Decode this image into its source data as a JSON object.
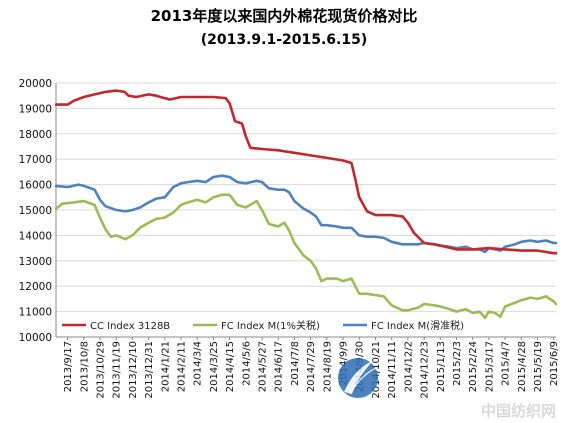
{
  "chart_data": {
    "type": "line",
    "title": "2013年度以来国内外棉花现货价格对比",
    "subtitle": "(2013.9.1-2015.6.15)",
    "xlabel": "",
    "ylabel": "",
    "ylim": [
      10000,
      20000
    ],
    "yticks": [
      10000,
      11000,
      12000,
      13000,
      14000,
      15000,
      16000,
      17000,
      18000,
      19000,
      20000
    ],
    "grid": "horizontal",
    "legend_position": "bottom-inside",
    "xlim": [
      "2013-09-02",
      "2015-06-12"
    ],
    "x_tick_labels": [
      "2013/9/17",
      "2013/10/8",
      "2013/10/29",
      "2013/11/19",
      "2013/12/10",
      "2013/12/31",
      "2014/1/21",
      "2014/2/11",
      "2014/3/4",
      "2014/3/25",
      "2014/4/15",
      "2014/5/6",
      "2014/5/27",
      "2014/6/17",
      "2014/7/8",
      "2014/7/29",
      "2014/8/19",
      "2014/9/9",
      "2014/9/30",
      "2014/10/21",
      "2014/11/11",
      "2014/12/2",
      "2014/12/23",
      "2015/1/13",
      "2015/2/3",
      "2015/2/24",
      "2015/3/17",
      "2015/4/7",
      "2015/4/28",
      "2015/5/19",
      "2015/6/9"
    ],
    "series": [
      {
        "name": "CC Index 3128B",
        "color": "#C0282D",
        "points": [
          [
            "2013-09-02",
            19150
          ],
          [
            "2013-09-17",
            19150
          ],
          [
            "2013-09-25",
            19300
          ],
          [
            "2013-10-08",
            19450
          ],
          [
            "2013-10-22",
            19550
          ],
          [
            "2013-11-05",
            19650
          ],
          [
            "2013-11-19",
            19700
          ],
          [
            "2013-11-30",
            19650
          ],
          [
            "2013-12-05",
            19500
          ],
          [
            "2013-12-15",
            19450
          ],
          [
            "2013-12-31",
            19550
          ],
          [
            "2014-01-10",
            19500
          ],
          [
            "2014-01-21",
            19400
          ],
          [
            "2014-01-28",
            19350
          ],
          [
            "2014-02-11",
            19450
          ],
          [
            "2014-03-04",
            19450
          ],
          [
            "2014-03-25",
            19450
          ],
          [
            "2014-04-10",
            19400
          ],
          [
            "2014-04-15",
            19200
          ],
          [
            "2014-04-22",
            18500
          ],
          [
            "2014-05-01",
            18400
          ],
          [
            "2014-05-06",
            17900
          ],
          [
            "2014-05-12",
            17450
          ],
          [
            "2014-05-27",
            17400
          ],
          [
            "2014-06-17",
            17350
          ],
          [
            "2014-07-08",
            17250
          ],
          [
            "2014-07-29",
            17150
          ],
          [
            "2014-08-19",
            17050
          ],
          [
            "2014-09-09",
            16950
          ],
          [
            "2014-09-20",
            16850
          ],
          [
            "2014-09-25",
            16200
          ],
          [
            "2014-09-30",
            15500
          ],
          [
            "2014-10-10",
            14950
          ],
          [
            "2014-10-21",
            14800
          ],
          [
            "2014-11-11",
            14800
          ],
          [
            "2014-11-25",
            14750
          ],
          [
            "2014-12-02",
            14500
          ],
          [
            "2014-12-10",
            14100
          ],
          [
            "2014-12-23",
            13700
          ],
          [
            "2015-01-05",
            13650
          ],
          [
            "2015-01-13",
            13600
          ],
          [
            "2015-01-20",
            13550
          ],
          [
            "2015-02-03",
            13450
          ],
          [
            "2015-02-24",
            13450
          ],
          [
            "2015-03-17",
            13500
          ],
          [
            "2015-04-07",
            13450
          ],
          [
            "2015-04-28",
            13400
          ],
          [
            "2015-05-19",
            13400
          ],
          [
            "2015-06-09",
            13300
          ],
          [
            "2015-06-12",
            13300
          ]
        ]
      },
      {
        "name": "FC Index M(1%关税)",
        "color": "#9BBB59",
        "points": [
          [
            "2013-09-02",
            15050
          ],
          [
            "2013-09-10",
            15250
          ],
          [
            "2013-09-25",
            15300
          ],
          [
            "2013-10-08",
            15350
          ],
          [
            "2013-10-22",
            15200
          ],
          [
            "2013-10-29",
            14700
          ],
          [
            "2013-11-05",
            14250
          ],
          [
            "2013-11-12",
            13950
          ],
          [
            "2013-11-19",
            14000
          ],
          [
            "2013-12-01",
            13850
          ],
          [
            "2013-12-10",
            14000
          ],
          [
            "2013-12-20",
            14300
          ],
          [
            "2013-12-31",
            14500
          ],
          [
            "2014-01-10",
            14650
          ],
          [
            "2014-01-21",
            14700
          ],
          [
            "2014-02-01",
            14900
          ],
          [
            "2014-02-11",
            15200
          ],
          [
            "2014-02-20",
            15300
          ],
          [
            "2014-03-04",
            15400
          ],
          [
            "2014-03-15",
            15300
          ],
          [
            "2014-03-25",
            15500
          ],
          [
            "2014-04-05",
            15600
          ],
          [
            "2014-04-15",
            15600
          ],
          [
            "2014-04-25",
            15200
          ],
          [
            "2014-05-06",
            15100
          ],
          [
            "2014-05-20",
            15350
          ],
          [
            "2014-05-27",
            15000
          ],
          [
            "2014-06-05",
            14450
          ],
          [
            "2014-06-17",
            14350
          ],
          [
            "2014-06-25",
            14500
          ],
          [
            "2014-07-01",
            14200
          ],
          [
            "2014-07-08",
            13700
          ],
          [
            "2014-07-20",
            13200
          ],
          [
            "2014-07-29",
            13000
          ],
          [
            "2014-08-05",
            12700
          ],
          [
            "2014-08-12",
            12200
          ],
          [
            "2014-08-19",
            12300
          ],
          [
            "2014-09-01",
            12300
          ],
          [
            "2014-09-09",
            12200
          ],
          [
            "2014-09-20",
            12300
          ],
          [
            "2014-09-30",
            11700
          ],
          [
            "2014-10-10",
            11700
          ],
          [
            "2014-10-21",
            11650
          ],
          [
            "2014-11-01",
            11600
          ],
          [
            "2014-11-11",
            11250
          ],
          [
            "2014-11-25",
            11050
          ],
          [
            "2014-12-02",
            11050
          ],
          [
            "2014-12-15",
            11150
          ],
          [
            "2014-12-23",
            11300
          ],
          [
            "2015-01-05",
            11250
          ],
          [
            "2015-01-13",
            11200
          ],
          [
            "2015-01-25",
            11100
          ],
          [
            "2015-02-03",
            11000
          ],
          [
            "2015-02-15",
            11100
          ],
          [
            "2015-02-24",
            10950
          ],
          [
            "2015-03-05",
            11000
          ],
          [
            "2015-03-12",
            10750
          ],
          [
            "2015-03-17",
            11000
          ],
          [
            "2015-03-25",
            10950
          ],
          [
            "2015-04-01",
            10800
          ],
          [
            "2015-04-07",
            11200
          ],
          [
            "2015-04-20",
            11350
          ],
          [
            "2015-04-28",
            11450
          ],
          [
            "2015-05-10",
            11550
          ],
          [
            "2015-05-19",
            11500
          ],
          [
            "2015-05-30",
            11600
          ],
          [
            "2015-06-09",
            11400
          ],
          [
            "2015-06-12",
            11300
          ]
        ]
      },
      {
        "name": "FC Index M(滑准税)",
        "color": "#4F81BD",
        "points": [
          [
            "2013-09-02",
            15950
          ],
          [
            "2013-09-17",
            15900
          ],
          [
            "2013-10-01",
            16000
          ],
          [
            "2013-10-08",
            15950
          ],
          [
            "2013-10-22",
            15800
          ],
          [
            "2013-10-29",
            15400
          ],
          [
            "2013-11-05",
            15150
          ],
          [
            "2013-11-19",
            15000
          ],
          [
            "2013-12-01",
            14950
          ],
          [
            "2013-12-10",
            15000
          ],
          [
            "2013-12-20",
            15100
          ],
          [
            "2013-12-31",
            15300
          ],
          [
            "2014-01-10",
            15450
          ],
          [
            "2014-01-21",
            15500
          ],
          [
            "2014-02-01",
            15900
          ],
          [
            "2014-02-11",
            16050
          ],
          [
            "2014-02-20",
            16100
          ],
          [
            "2014-03-04",
            16150
          ],
          [
            "2014-03-15",
            16100
          ],
          [
            "2014-03-25",
            16300
          ],
          [
            "2014-04-05",
            16350
          ],
          [
            "2014-04-15",
            16300
          ],
          [
            "2014-04-25",
            16100
          ],
          [
            "2014-05-06",
            16050
          ],
          [
            "2014-05-20",
            16150
          ],
          [
            "2014-05-27",
            16100
          ],
          [
            "2014-06-05",
            15850
          ],
          [
            "2014-06-17",
            15800
          ],
          [
            "2014-06-25",
            15800
          ],
          [
            "2014-07-01",
            15700
          ],
          [
            "2014-07-08",
            15350
          ],
          [
            "2014-07-20",
            15050
          ],
          [
            "2014-07-29",
            14900
          ],
          [
            "2014-08-05",
            14750
          ],
          [
            "2014-08-12",
            14400
          ],
          [
            "2014-08-19",
            14400
          ],
          [
            "2014-09-01",
            14350
          ],
          [
            "2014-09-09",
            14300
          ],
          [
            "2014-09-20",
            14300
          ],
          [
            "2014-09-30",
            14000
          ],
          [
            "2014-10-10",
            13950
          ],
          [
            "2014-10-21",
            13950
          ],
          [
            "2014-11-01",
            13900
          ],
          [
            "2014-11-11",
            13750
          ],
          [
            "2014-11-25",
            13650
          ],
          [
            "2014-12-02",
            13650
          ],
          [
            "2014-12-15",
            13650
          ],
          [
            "2014-12-23",
            13700
          ],
          [
            "2015-01-05",
            13650
          ],
          [
            "2015-01-13",
            13600
          ],
          [
            "2015-01-25",
            13550
          ],
          [
            "2015-02-03",
            13500
          ],
          [
            "2015-02-15",
            13550
          ],
          [
            "2015-02-24",
            13450
          ],
          [
            "2015-03-05",
            13450
          ],
          [
            "2015-03-12",
            13350
          ],
          [
            "2015-03-17",
            13500
          ],
          [
            "2015-03-25",
            13450
          ],
          [
            "2015-04-01",
            13400
          ],
          [
            "2015-04-07",
            13550
          ],
          [
            "2015-04-20",
            13650
          ],
          [
            "2015-04-28",
            13750
          ],
          [
            "2015-05-10",
            13800
          ],
          [
            "2015-05-19",
            13750
          ],
          [
            "2015-05-30",
            13800
          ],
          [
            "2015-06-09",
            13700
          ],
          [
            "2015-06-12",
            13700
          ]
        ]
      }
    ]
  },
  "watermark": {
    "text": "中国纺织网",
    "emblem": "globe-swoosh-logo"
  }
}
